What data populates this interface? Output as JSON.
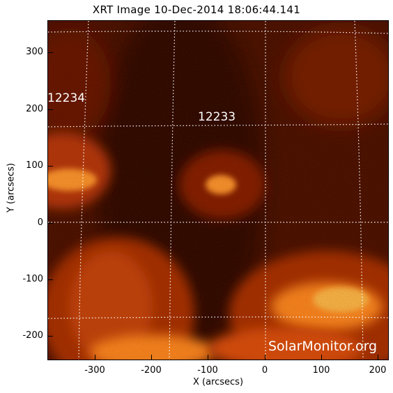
{
  "title": "XRT Image  10-Dec-2014  18:06:44.141",
  "x_axis": {
    "label": "X (arcsecs)",
    "ticks": [
      "-300",
      "-200",
      "-100",
      "0",
      "100",
      "200"
    ]
  },
  "y_axis": {
    "label": "Y (arcsecs)",
    "ticks": [
      "300",
      "200",
      "100",
      "0",
      "-100",
      "-200"
    ]
  },
  "active_regions": [
    {
      "id": "12234"
    },
    {
      "id": "12233"
    }
  ],
  "watermark": "SolarMonitor.org",
  "colors": {
    "background_dark": "#2a0500",
    "mid_red": "#8a1a00",
    "bright_orange": "#ff8a1c",
    "hot_yellow": "#ffd060",
    "grid": "#ffffff"
  }
}
